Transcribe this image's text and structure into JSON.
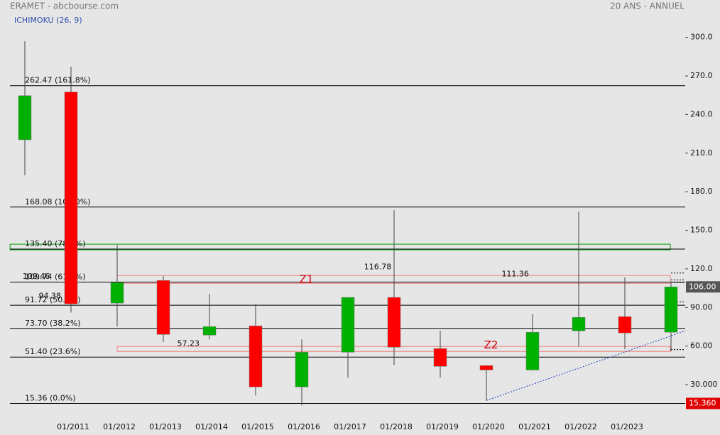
{
  "header": {
    "title": "ERAMET - abcbourse.com",
    "period": "20 ANS - ANNUEL",
    "indicator": "ICHIMOKU (26, 9)"
  },
  "chart_data": {
    "type": "candlestick",
    "categories": [
      null,
      "01/2011",
      "01/2012",
      "01/2013",
      "01/2014",
      "01/2015",
      "01/2016",
      "01/2017",
      "01/2018",
      "01/2019",
      "01/2020",
      "01/2021",
      "01/2022",
      "01/2023",
      null
    ],
    "open": [
      220.4,
      257.5,
      93.4,
      111.0,
      68.5,
      75.7,
      28.2,
      55.2,
      97.8,
      58.0,
      44.8,
      41.4,
      71.8,
      82.9,
      70.7
    ],
    "high": [
      297.0,
      277.3,
      138.7,
      114.4,
      100.6,
      92.8,
      65.2,
      97.8,
      165.7,
      71.8,
      45.3,
      85.0,
      164.6,
      113.3,
      108.8
    ],
    "low": [
      192.8,
      86.0,
      75.1,
      63.0,
      65.2,
      21.5,
      13.8,
      35.4,
      45.3,
      35.4,
      17.7,
      40.9,
      59.7,
      57.5,
      55.8
    ],
    "close": [
      254.7,
      92.8,
      109.4,
      69.0,
      75.1,
      28.2,
      55.2,
      97.8,
      59.1,
      44.2,
      41.4,
      70.7,
      82.3,
      70.2,
      106.0
    ],
    "up_color": "#00b000",
    "down_color": "#ff0000",
    "ylim": [
      -2,
      307
    ],
    "yticks": [
      {
        "value": 300,
        "label": "300.0"
      },
      {
        "value": 270,
        "label": "270.0"
      },
      {
        "value": 240,
        "label": "240.0"
      },
      {
        "value": 210,
        "label": "210.0"
      },
      {
        "value": 180,
        "label": "180.0"
      },
      {
        "value": 150,
        "label": "150.0"
      },
      {
        "value": 120,
        "label": "120.0"
      },
      {
        "value": 90,
        "label": "90.00"
      },
      {
        "value": 60,
        "label": "60.00"
      },
      {
        "value": 30,
        "label": "30.000"
      }
    ],
    "levels": [
      {
        "value": 262.47,
        "label": "262.47  (161.8%)"
      },
      {
        "value": 168.08,
        "label": "168.08  (100.0%)"
      },
      {
        "value": 135.4,
        "label": "135.40  (78.6%)"
      },
      {
        "value": 109.74,
        "label": "109.74  (61.8%)"
      },
      {
        "value": 91.72,
        "label": "91.72  (50.0%)"
      },
      {
        "value": 73.7,
        "label": "73.70  (38.2%)"
      },
      {
        "value": 51.4,
        "label": "51.40  (23.6%)"
      },
      {
        "value": 15.36,
        "label": "15.36  (0.0%)"
      }
    ],
    "zones": [
      {
        "low": 134.8,
        "high": 139.2,
        "color": "#00a000",
        "from": -0.32
      },
      {
        "low": 108.8,
        "high": 114.9,
        "color": "#f08080",
        "from": 2
      },
      {
        "low": 55.8,
        "high": 59.7,
        "color": "#f08080",
        "from": 2
      }
    ],
    "zone_labels": [
      {
        "label": "Z1",
        "x": 6.1,
        "y": 111.8
      },
      {
        "label": "Z2",
        "x": 10.1,
        "y": 60.5
      }
    ],
    "annotations": [
      {
        "value": 116.78,
        "label": "116.78",
        "x": 7.35
      },
      {
        "value": 111.36,
        "label": "111.36",
        "x": 10.33
      },
      {
        "value": 109.46,
        "label": "109.46",
        "x": -0.05
      },
      {
        "value": 94.38,
        "label": "94.38",
        "x": 0.3
      },
      {
        "value": 57.23,
        "label": "57.23",
        "x": 3.3
      }
    ],
    "trendline": {
      "x": [
        10,
        14.31
      ],
      "y": [
        17.7,
        71.8
      ],
      "color": "#2040c0"
    },
    "price_tags": [
      {
        "value": 106.0,
        "label": "106.00",
        "color": "#555555"
      },
      {
        "value": 15.36,
        "label": "15.360",
        "color": "#e00000"
      }
    ]
  }
}
